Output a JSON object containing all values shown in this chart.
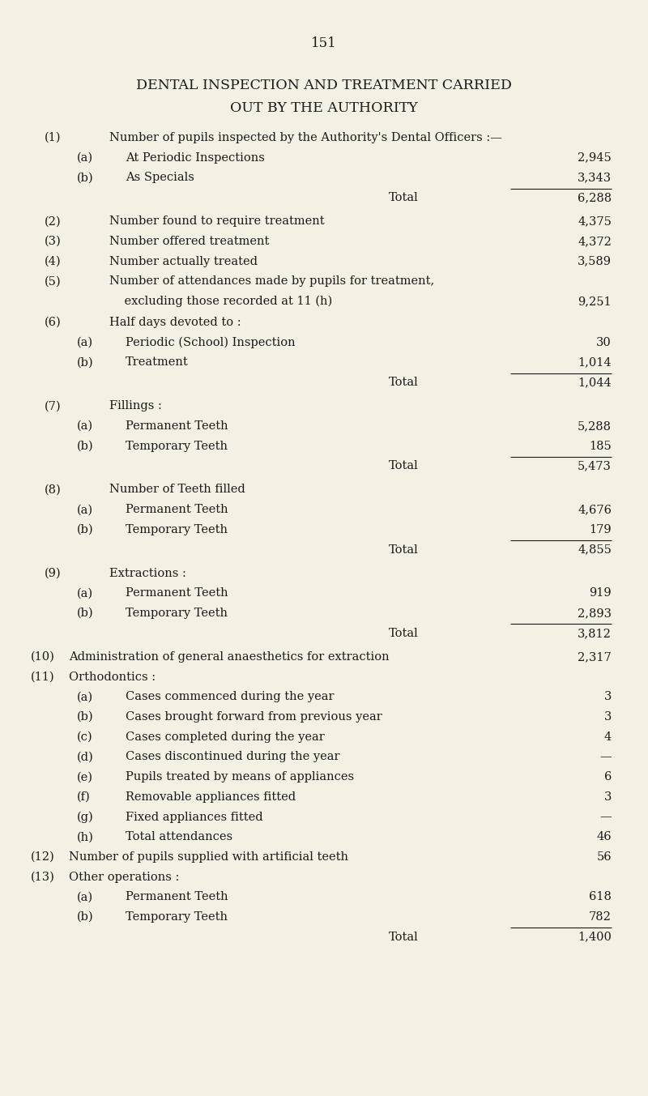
{
  "page_number": "151",
  "title_line1": "DENTAL INSPECTION AND TREATMENT CARRIED",
  "title_line2": "OUT BY THE AUTHORITY",
  "background_color": "#f5f0e4",
  "text_color": "#1a1a1a",
  "font_size": 10.5,
  "title_font_size": 12.5,
  "page_num_font_size": 12,
  "fig_width": 8.0,
  "fig_height": 13.53,
  "dpi": 100,
  "rows": [
    {
      "indent": 0,
      "prefix": "(1)",
      "label": "Number of pupils inspected by the Authority's Dental Officers :—",
      "value": "",
      "underline": false
    },
    {
      "indent": 1,
      "prefix": "(a)",
      "label": "At Periodic Inspections",
      "value": "2,945",
      "underline": false
    },
    {
      "indent": 1,
      "prefix": "(b)",
      "label": "As Specials",
      "value": "3,343",
      "underline": true
    },
    {
      "indent": 2,
      "prefix": "",
      "label": "Total",
      "value": "6,288",
      "underline": false
    },
    {
      "indent": 0,
      "prefix": "(2)",
      "label": "Number found to require treatment",
      "value": "4,375",
      "underline": false
    },
    {
      "indent": 0,
      "prefix": "(3)",
      "label": "Number offered treatment",
      "value": "4,372",
      "underline": false
    },
    {
      "indent": 0,
      "prefix": "(4)",
      "label": "Number actually treated",
      "value": "3,589",
      "underline": false
    },
    {
      "indent": 0,
      "prefix": "(5)",
      "label": "Number of attendances made by pupils for treatment,",
      "value": "",
      "underline": false
    },
    {
      "indent": 0,
      "prefix": "",
      "label": "    excluding those recorded at 11 (h)",
      "value": "9,251",
      "underline": false,
      "continuation": true
    },
    {
      "indent": 0,
      "prefix": "(6)",
      "label": "Half days devoted to :",
      "value": "",
      "underline": false
    },
    {
      "indent": 1,
      "prefix": "(a)",
      "label": "Periodic (School) Inspection",
      "value": "30",
      "underline": false
    },
    {
      "indent": 1,
      "prefix": "(b)",
      "label": "Treatment",
      "value": "1,014",
      "underline": true
    },
    {
      "indent": 2,
      "prefix": "",
      "label": "Total",
      "value": "1,044",
      "underline": false
    },
    {
      "indent": 0,
      "prefix": "(7)",
      "label": "Fillings :",
      "value": "",
      "underline": false
    },
    {
      "indent": 1,
      "prefix": "(a)",
      "label": "Permanent Teeth",
      "value": "5,288",
      "underline": false
    },
    {
      "indent": 1,
      "prefix": "(b)",
      "label": "Temporary Teeth",
      "value": "185",
      "underline": true
    },
    {
      "indent": 2,
      "prefix": "",
      "label": "Total",
      "value": "5,473",
      "underline": false
    },
    {
      "indent": 0,
      "prefix": "(8)",
      "label": "Number of Teeth filled",
      "value": "",
      "underline": false
    },
    {
      "indent": 1,
      "prefix": "(a)",
      "label": "Permanent Teeth",
      "value": "4,676",
      "underline": false
    },
    {
      "indent": 1,
      "prefix": "(b)",
      "label": "Temporary Teeth",
      "value": "179",
      "underline": true
    },
    {
      "indent": 2,
      "prefix": "",
      "label": "Total",
      "value": "4,855",
      "underline": false
    },
    {
      "indent": 0,
      "prefix": "(9)",
      "label": "Extractions :",
      "value": "",
      "underline": false
    },
    {
      "indent": 1,
      "prefix": "(a)",
      "label": "Permanent Teeth",
      "value": "919",
      "underline": false
    },
    {
      "indent": 1,
      "prefix": "(b)",
      "label": "Temporary Teeth",
      "value": "2,893",
      "underline": true
    },
    {
      "indent": 2,
      "prefix": "",
      "label": "Total",
      "value": "3,812",
      "underline": false
    },
    {
      "indent": 0,
      "prefix": "(10)",
      "label": "Administration of general anaesthetics for extraction",
      "value": "2,317",
      "underline": false
    },
    {
      "indent": 0,
      "prefix": "(11)",
      "label": "Orthodontics :",
      "value": "",
      "underline": false
    },
    {
      "indent": 1,
      "prefix": "(a)",
      "label": "Cases commenced during the year",
      "value": "3",
      "underline": false
    },
    {
      "indent": 1,
      "prefix": "(b)",
      "label": "Cases brought forward from previous year",
      "value": "3",
      "underline": false
    },
    {
      "indent": 1,
      "prefix": "(c)",
      "label": "Cases completed during the year",
      "value": "4",
      "underline": false
    },
    {
      "indent": 1,
      "prefix": "(d)",
      "label": "Cases discontinued during the year",
      "value": "—",
      "underline": false
    },
    {
      "indent": 1,
      "prefix": "(e)",
      "label": "Pupils treated by means of appliances",
      "value": "6",
      "underline": false
    },
    {
      "indent": 1,
      "prefix": "(f)",
      "label": "Removable appliances fitted",
      "value": "3",
      "underline": false
    },
    {
      "indent": 1,
      "prefix": "(g)",
      "label": "Fixed appliances fitted",
      "value": "—",
      "underline": false
    },
    {
      "indent": 1,
      "prefix": "(h)",
      "label": "Total attendances",
      "value": "46",
      "underline": false
    },
    {
      "indent": 0,
      "prefix": "(12)",
      "label": "Number of pupils supplied with artificial teeth",
      "value": "56",
      "underline": false
    },
    {
      "indent": 0,
      "prefix": "(13)",
      "label": "Other operations :",
      "value": "",
      "underline": false
    },
    {
      "indent": 1,
      "prefix": "(a)",
      "label": "Permanent Teeth",
      "value": "618",
      "underline": false
    },
    {
      "indent": 1,
      "prefix": "(b)",
      "label": "Temporary Teeth",
      "value": "782",
      "underline": true
    },
    {
      "indent": 2,
      "prefix": "",
      "label": "Total",
      "value": "1,400",
      "underline": false
    }
  ]
}
